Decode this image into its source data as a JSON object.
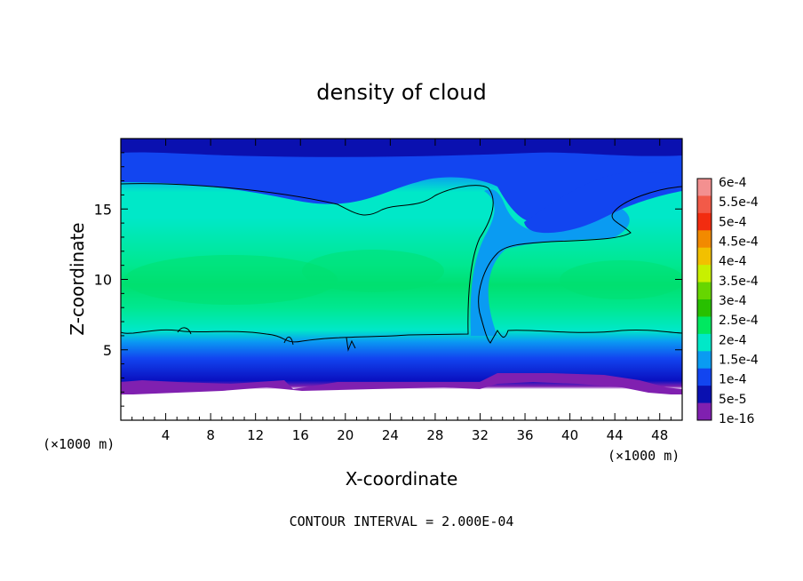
{
  "chart_data": {
    "type": "heatmap",
    "title": "density of cloud",
    "xlabel": "X-coordinate",
    "ylabel": "Z-coordinate",
    "x_unit": "(×1000 m)",
    "z_unit": "(×1000 m)",
    "xlim": [
      0,
      50
    ],
    "ylim": [
      0,
      20
    ],
    "x_ticks": [
      4,
      8,
      12,
      16,
      20,
      24,
      28,
      32,
      36,
      40,
      44,
      48
    ],
    "y_ticks": [
      5,
      10,
      15
    ],
    "footer": "CONTOUR INTERVAL = 2.000E-04",
    "colorbar": {
      "labels": [
        "6e-4",
        "5.5e-4",
        "5e-4",
        "4.5e-4",
        "4e-4",
        "3.5e-4",
        "3e-4",
        "2.5e-4",
        "2e-4",
        "1.5e-4",
        "1e-4",
        "5e-5",
        "1e-16"
      ],
      "colors": [
        "#f39090",
        "#f25a48",
        "#f22c10",
        "#f28a00",
        "#f2c000",
        "#c8f000",
        "#66d600",
        "#28c000",
        "#00e860",
        "#00e8c8",
        "#0a9bf2",
        "#1245f0",
        "#0a10b0",
        "#8020b0"
      ]
    },
    "contour_level": 0.0002,
    "regions": {
      "cloud_base_km": 2.3,
      "upper_blue_layer_km": [
        17,
        20
      ],
      "cloud_core_km": [
        6,
        16.5
      ],
      "max_density": "2.5e-4 to 3e-4 near z = 9-11"
    }
  }
}
